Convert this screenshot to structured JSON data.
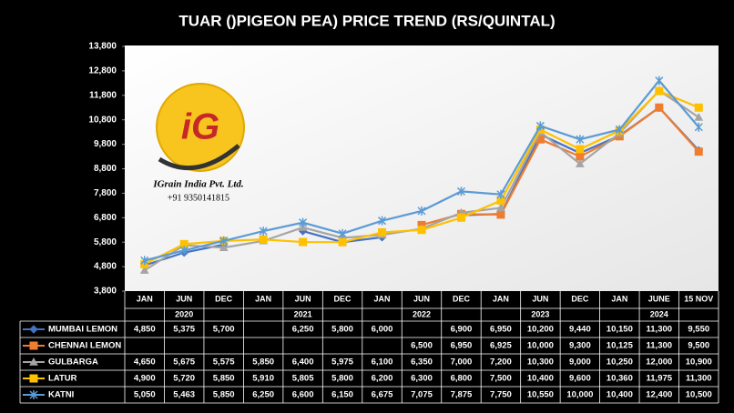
{
  "chart_data": {
    "type": "line",
    "title": "TUAR ()PIGEON PEA) PRICE TREND (RS/QUINTAL)",
    "categories": [
      "JAN",
      "JUN",
      "DEC",
      "JAN",
      "JUN",
      "DEC",
      "JAN",
      "JUN",
      "DEC",
      "JAN",
      "JUN",
      "DEC",
      "JAN",
      "JUNE",
      "15 NOV"
    ],
    "year_labels": [
      "2020",
      "2021",
      "2022",
      "2023",
      "2024"
    ],
    "ylim": [
      3800,
      13800
    ],
    "yticks": [
      {
        "value": 3800,
        "label": "3,800"
      },
      {
        "value": 4800,
        "label": "4,800"
      },
      {
        "value": 5800,
        "label": "5,800"
      },
      {
        "value": 6800,
        "label": "6,800"
      },
      {
        "value": 7800,
        "label": "7,800"
      },
      {
        "value": 8800,
        "label": "8,800"
      },
      {
        "value": 9800,
        "label": "9,800"
      },
      {
        "value": 10800,
        "label": "10,800"
      },
      {
        "value": 11800,
        "label": "11,800"
      },
      {
        "value": 12800,
        "label": "12,800"
      },
      {
        "value": 13800,
        "label": "13,800"
      }
    ],
    "grid": false,
    "annotations": [
      "iG",
      "IGrain India Pvt. Ltd.",
      "+91 9350141815"
    ],
    "series": [
      {
        "name": "MUMBAI LEMON",
        "color": "#4472c4",
        "marker": "diamond",
        "values": [
          4850,
          5375,
          5700,
          null,
          6250,
          5800,
          6000,
          null,
          6900,
          6950,
          10200,
          9440,
          10150,
          11300,
          9550
        ],
        "value_labels": [
          "4,850",
          "5,375",
          "5,700",
          null,
          "6,250",
          "5,800",
          "6,000",
          null,
          "6,900",
          "6,950",
          "10,200",
          "9,440",
          "10,150",
          "11,300",
          "9,550"
        ]
      },
      {
        "name": "CHENNAI LEMON",
        "color": "#ed7d31",
        "marker": "square",
        "values": [
          null,
          null,
          null,
          null,
          null,
          null,
          null,
          6500,
          6950,
          6925,
          10000,
          9300,
          10125,
          11300,
          9500
        ],
        "value_labels": [
          null,
          null,
          null,
          null,
          null,
          null,
          null,
          "6,500",
          "6,950",
          "6,925",
          "10,000",
          "9,300",
          "10,125",
          "11,300",
          "9,500"
        ]
      },
      {
        "name": "GULBARGA",
        "color": "#a5a5a5",
        "marker": "triangle",
        "values": [
          4650,
          5675,
          5575,
          5850,
          6400,
          5975,
          6100,
          6350,
          7000,
          7200,
          10300,
          9000,
          10250,
          12000,
          10900
        ],
        "value_labels": [
          "4,650",
          "5,675",
          "5,575",
          "5,850",
          "6,400",
          "5,975",
          "6,100",
          "6,350",
          "7,000",
          "7,200",
          "10,300",
          "9,000",
          "10,250",
          "12,000",
          "10,900"
        ]
      },
      {
        "name": "LATUR",
        "color": "#ffc000",
        "marker": "square",
        "values": [
          4900,
          5720,
          5850,
          5910,
          5805,
          5800,
          6200,
          6300,
          6800,
          7500,
          10400,
          9600,
          10360,
          11975,
          11300
        ],
        "value_labels": [
          "4,900",
          "5,720",
          "5,850",
          "5,910",
          "5,805",
          "5,800",
          "6,200",
          "6,300",
          "6,800",
          "7,500",
          "10,400",
          "9,600",
          "10,360",
          "11,975",
          "11,300"
        ]
      },
      {
        "name": "KATNI",
        "color": "#5b9bd5",
        "marker": "star",
        "values": [
          5050,
          5463,
          5850,
          6250,
          6600,
          6150,
          6675,
          7075,
          7875,
          7750,
          10550,
          10000,
          10400,
          12400,
          10500
        ],
        "value_labels": [
          "5,050",
          "5,463",
          "5,850",
          "6,250",
          "6,600",
          "6,150",
          "6,675",
          "7,075",
          "7,875",
          "7,750",
          "10,550",
          "10,000",
          "10,400",
          "12,400",
          "10,500"
        ]
      }
    ]
  }
}
